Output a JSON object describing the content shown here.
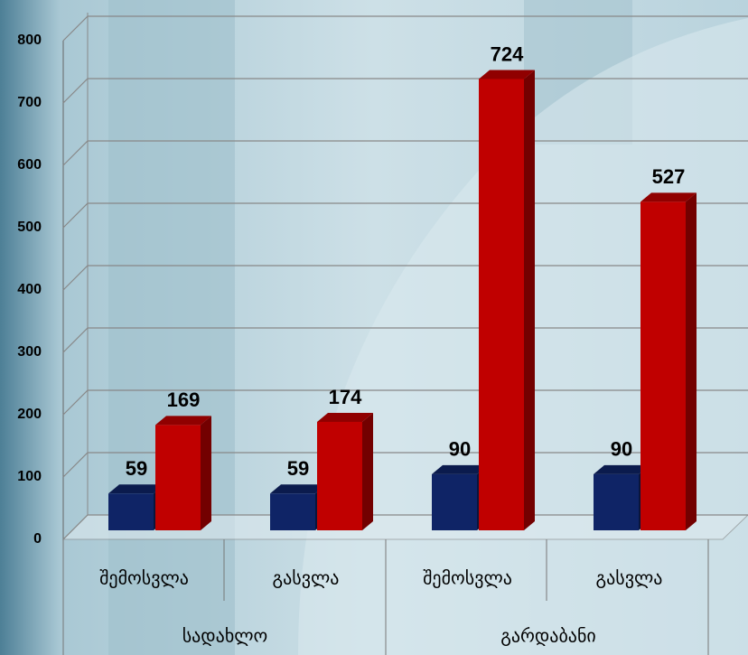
{
  "chart_data": {
    "type": "bar3d",
    "categories": [
      "შემოსვლა",
      "გასვლა",
      "შემოსვლა",
      "გასვლა"
    ],
    "groups": [
      "სადახლო",
      "გარდაბანი"
    ],
    "series": [
      {
        "color": "#0f2466",
        "values": [
          59,
          59,
          90,
          90
        ]
      },
      {
        "color": "#c00000",
        "values": [
          169,
          174,
          724,
          527
        ]
      }
    ],
    "ylim": [
      0,
      800
    ],
    "yticks": [
      0,
      100,
      200,
      300,
      400,
      500,
      600,
      700,
      800
    ],
    "grid": true
  }
}
